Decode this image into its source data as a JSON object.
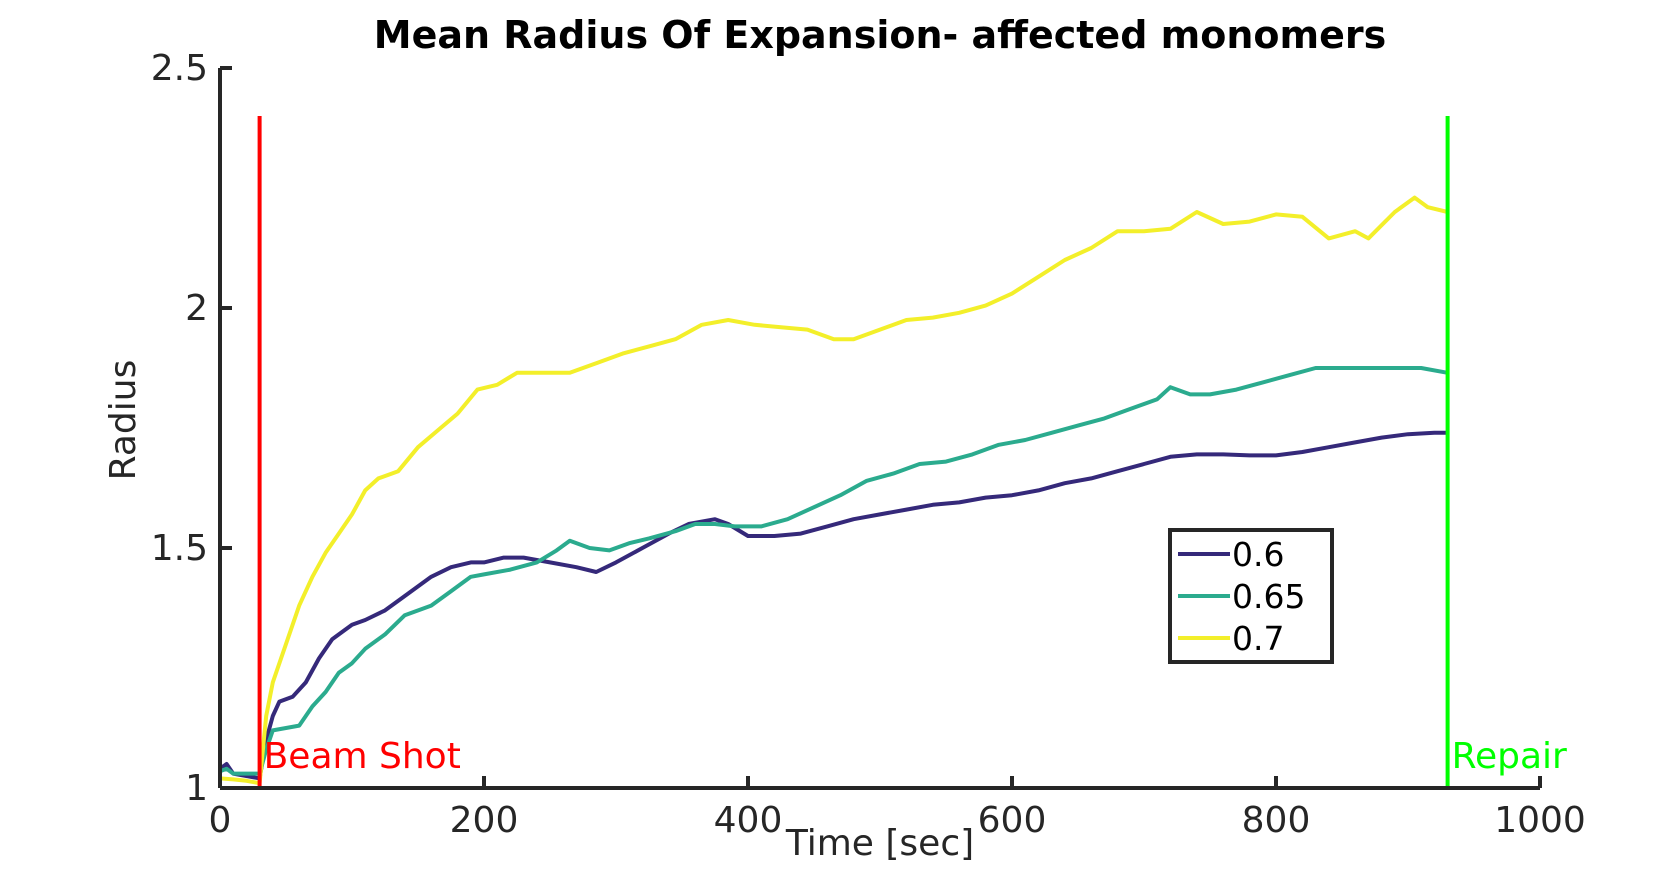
{
  "chart_data": {
    "type": "line",
    "title": "Mean Radius Of Expansion- affected monomers",
    "xlabel": "Time [sec]",
    "ylabel": "Radius",
    "xlim": [
      0,
      1000
    ],
    "ylim": [
      1,
      2.5
    ],
    "x_ticks": [
      "0",
      "200",
      "400",
      "600",
      "800",
      "1000"
    ],
    "y_ticks": [
      "1",
      "1.5",
      "2",
      "2.5"
    ],
    "grid": false,
    "legend_position": "center-right",
    "series": [
      {
        "name": "0.6",
        "color": "#35297a",
        "points": [
          [
            0,
            1.04
          ],
          [
            5,
            1.05
          ],
          [
            10,
            1.03
          ],
          [
            20,
            1.025
          ],
          [
            30,
            1.02
          ],
          [
            35,
            1.1
          ],
          [
            40,
            1.15
          ],
          [
            45,
            1.18
          ],
          [
            55,
            1.19
          ],
          [
            65,
            1.22
          ],
          [
            75,
            1.27
          ],
          [
            85,
            1.31
          ],
          [
            100,
            1.34
          ],
          [
            110,
            1.35
          ],
          [
            125,
            1.37
          ],
          [
            140,
            1.4
          ],
          [
            160,
            1.44
          ],
          [
            175,
            1.46
          ],
          [
            190,
            1.47
          ],
          [
            200,
            1.47
          ],
          [
            215,
            1.48
          ],
          [
            230,
            1.48
          ],
          [
            250,
            1.47
          ],
          [
            270,
            1.46
          ],
          [
            285,
            1.45
          ],
          [
            300,
            1.47
          ],
          [
            320,
            1.5
          ],
          [
            340,
            1.53
          ],
          [
            355,
            1.55
          ],
          [
            375,
            1.56
          ],
          [
            385,
            1.55
          ],
          [
            400,
            1.525
          ],
          [
            420,
            1.525
          ],
          [
            440,
            1.53
          ],
          [
            460,
            1.545
          ],
          [
            480,
            1.56
          ],
          [
            500,
            1.57
          ],
          [
            520,
            1.58
          ],
          [
            540,
            1.59
          ],
          [
            560,
            1.595
          ],
          [
            580,
            1.605
          ],
          [
            600,
            1.61
          ],
          [
            620,
            1.62
          ],
          [
            640,
            1.635
          ],
          [
            660,
            1.645
          ],
          [
            680,
            1.66
          ],
          [
            700,
            1.675
          ],
          [
            720,
            1.69
          ],
          [
            740,
            1.695
          ],
          [
            760,
            1.695
          ],
          [
            780,
            1.693
          ],
          [
            800,
            1.693
          ],
          [
            820,
            1.7
          ],
          [
            840,
            1.71
          ],
          [
            860,
            1.72
          ],
          [
            880,
            1.73
          ],
          [
            900,
            1.737
          ],
          [
            920,
            1.74
          ],
          [
            930,
            1.74
          ]
        ]
      },
      {
        "name": "0.65",
        "color": "#2bab8e",
        "points": [
          [
            0,
            1.035
          ],
          [
            5,
            1.04
          ],
          [
            10,
            1.03
          ],
          [
            20,
            1.03
          ],
          [
            30,
            1.03
          ],
          [
            35,
            1.08
          ],
          [
            40,
            1.12
          ],
          [
            50,
            1.125
          ],
          [
            60,
            1.13
          ],
          [
            70,
            1.17
          ],
          [
            80,
            1.2
          ],
          [
            90,
            1.24
          ],
          [
            100,
            1.26
          ],
          [
            110,
            1.29
          ],
          [
            125,
            1.32
          ],
          [
            140,
            1.36
          ],
          [
            160,
            1.38
          ],
          [
            175,
            1.41
          ],
          [
            190,
            1.44
          ],
          [
            200,
            1.445
          ],
          [
            220,
            1.455
          ],
          [
            240,
            1.47
          ],
          [
            255,
            1.495
          ],
          [
            265,
            1.515
          ],
          [
            280,
            1.5
          ],
          [
            295,
            1.495
          ],
          [
            310,
            1.51
          ],
          [
            325,
            1.52
          ],
          [
            345,
            1.535
          ],
          [
            360,
            1.55
          ],
          [
            375,
            1.55
          ],
          [
            390,
            1.545
          ],
          [
            410,
            1.545
          ],
          [
            430,
            1.56
          ],
          [
            450,
            1.585
          ],
          [
            470,
            1.61
          ],
          [
            490,
            1.64
          ],
          [
            510,
            1.655
          ],
          [
            530,
            1.675
          ],
          [
            550,
            1.68
          ],
          [
            570,
            1.695
          ],
          [
            590,
            1.715
          ],
          [
            610,
            1.725
          ],
          [
            630,
            1.74
          ],
          [
            650,
            1.755
          ],
          [
            670,
            1.77
          ],
          [
            690,
            1.79
          ],
          [
            710,
            1.81
          ],
          [
            720,
            1.835
          ],
          [
            735,
            1.82
          ],
          [
            750,
            1.82
          ],
          [
            770,
            1.83
          ],
          [
            790,
            1.845
          ],
          [
            810,
            1.86
          ],
          [
            830,
            1.875
          ],
          [
            850,
            1.875
          ],
          [
            870,
            1.875
          ],
          [
            890,
            1.875
          ],
          [
            910,
            1.875
          ],
          [
            930,
            1.865
          ]
        ]
      },
      {
        "name": "0.7",
        "color": "#f3ef2a",
        "points": [
          [
            0,
            1.02
          ],
          [
            10,
            1.018
          ],
          [
            20,
            1.015
          ],
          [
            30,
            1.01
          ],
          [
            35,
            1.15
          ],
          [
            40,
            1.22
          ],
          [
            50,
            1.3
          ],
          [
            60,
            1.38
          ],
          [
            70,
            1.44
          ],
          [
            80,
            1.49
          ],
          [
            90,
            1.53
          ],
          [
            100,
            1.57
          ],
          [
            110,
            1.62
          ],
          [
            120,
            1.645
          ],
          [
            135,
            1.66
          ],
          [
            150,
            1.71
          ],
          [
            165,
            1.745
          ],
          [
            180,
            1.78
          ],
          [
            195,
            1.83
          ],
          [
            210,
            1.84
          ],
          [
            225,
            1.865
          ],
          [
            245,
            1.865
          ],
          [
            265,
            1.865
          ],
          [
            285,
            1.885
          ],
          [
            305,
            1.905
          ],
          [
            325,
            1.92
          ],
          [
            345,
            1.935
          ],
          [
            365,
            1.965
          ],
          [
            385,
            1.975
          ],
          [
            405,
            1.965
          ],
          [
            425,
            1.96
          ],
          [
            445,
            1.955
          ],
          [
            465,
            1.935
          ],
          [
            480,
            1.935
          ],
          [
            500,
            1.955
          ],
          [
            520,
            1.975
          ],
          [
            540,
            1.98
          ],
          [
            560,
            1.99
          ],
          [
            580,
            2.005
          ],
          [
            600,
            2.03
          ],
          [
            620,
            2.065
          ],
          [
            640,
            2.1
          ],
          [
            660,
            2.125
          ],
          [
            680,
            2.16
          ],
          [
            700,
            2.16
          ],
          [
            720,
            2.165
          ],
          [
            740,
            2.2
          ],
          [
            760,
            2.175
          ],
          [
            780,
            2.18
          ],
          [
            800,
            2.195
          ],
          [
            820,
            2.19
          ],
          [
            840,
            2.145
          ],
          [
            860,
            2.16
          ],
          [
            870,
            2.145
          ],
          [
            890,
            2.2
          ],
          [
            905,
            2.23
          ],
          [
            915,
            2.21
          ],
          [
            930,
            2.2
          ]
        ]
      }
    ],
    "vertical_markers": [
      {
        "x": 0,
        "color": "#0000ff",
        "label": ""
      },
      {
        "x": 30,
        "color": "#ff0000",
        "label": "Beam Shot"
      },
      {
        "x": 930,
        "color": "#00ff00",
        "label": "Repair"
      }
    ]
  }
}
